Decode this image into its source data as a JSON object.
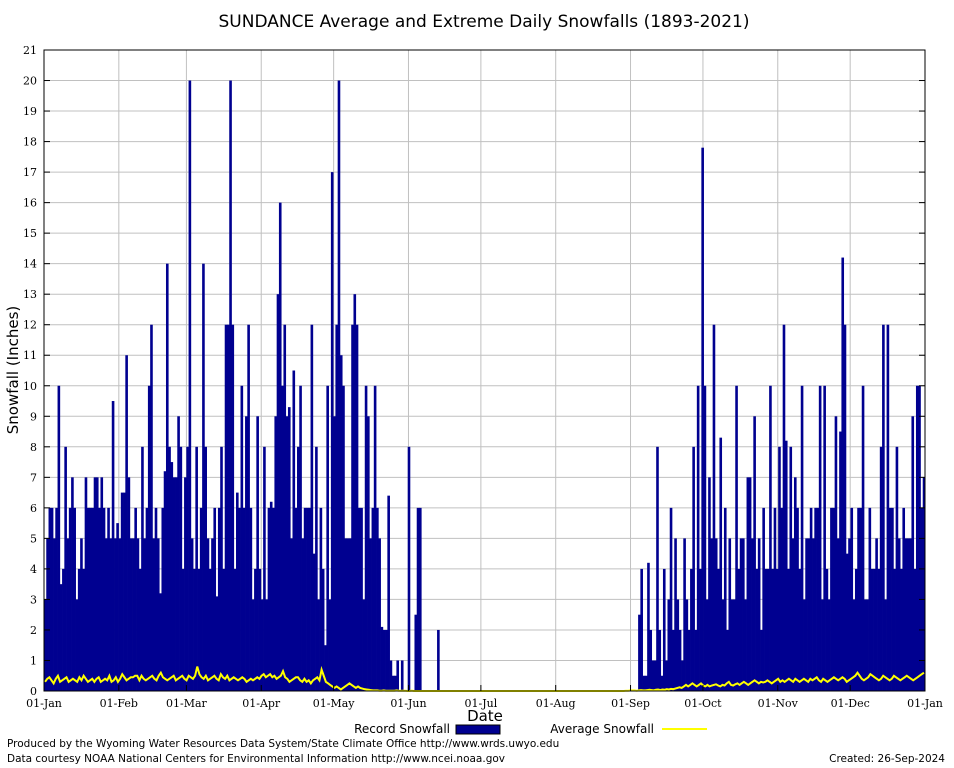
{
  "chart_data": {
    "type": "bar",
    "title": "SUNDANCE Average and Extreme Daily Snowfalls (1893-2021)",
    "xlabel": "Date",
    "ylabel": "Snowfall (Inches)",
    "ylim": [
      0,
      21
    ],
    "yticks": [
      0,
      1,
      2,
      3,
      4,
      5,
      6,
      7,
      8,
      9,
      10,
      11,
      12,
      13,
      14,
      15,
      16,
      17,
      18,
      19,
      20,
      21
    ],
    "xlim": [
      "01-Jan",
      "01-Jan"
    ],
    "xtick_labels": [
      "01-Jan",
      "01-Feb",
      "01-Mar",
      "01-Apr",
      "01-May",
      "01-Jun",
      "01-Jul",
      "01-Aug",
      "01-Sep",
      "01-Oct",
      "01-Nov",
      "01-Dec",
      "01-Jan"
    ],
    "xtick_days": [
      0,
      31,
      59,
      90,
      120,
      151,
      181,
      212,
      243,
      273,
      304,
      334,
      365
    ],
    "grid": true,
    "legend_position": "bottom",
    "series": [
      {
        "name": "Record Snowfall",
        "style": "bar",
        "color": "#000090",
        "values": [
          3,
          5,
          6,
          6,
          5,
          6,
          10,
          3.5,
          4,
          8,
          5,
          6,
          7,
          6,
          3,
          4,
          5,
          4,
          7,
          6,
          6,
          6,
          7,
          7,
          6,
          7,
          6,
          5,
          6,
          5,
          9.5,
          5,
          5.5,
          5,
          6.5,
          6.5,
          11,
          7,
          5,
          5,
          6,
          5,
          4,
          8,
          5,
          6,
          10,
          12,
          5,
          6,
          5,
          3.2,
          6,
          7.2,
          14,
          8,
          7.5,
          7,
          7,
          9,
          8,
          4,
          7,
          8,
          20,
          5,
          4,
          8,
          4,
          6,
          14,
          8,
          5,
          4,
          5,
          6,
          3.1,
          6,
          8,
          4,
          12,
          12,
          20,
          12,
          4,
          6.5,
          6,
          10,
          6,
          9,
          12,
          6,
          3,
          4,
          9,
          4,
          3,
          8,
          3,
          6,
          6.2,
          6,
          9,
          13,
          16,
          10,
          12,
          9,
          9.3,
          5,
          10.5,
          6,
          8,
          10,
          5,
          6,
          6,
          6,
          12,
          4.5,
          8,
          3,
          6,
          4,
          1.5,
          10,
          3,
          17,
          9,
          12,
          20,
          11,
          10,
          5,
          5,
          5,
          12,
          13,
          12,
          6,
          6,
          3,
          10,
          9,
          5,
          6,
          10,
          6,
          5,
          2.1,
          2,
          2,
          6.4,
          1,
          0.5,
          0.5,
          1,
          0,
          1,
          0,
          0,
          8,
          0,
          0,
          2.5,
          6,
          6,
          0,
          0,
          0,
          0,
          0,
          0,
          0,
          2,
          0,
          0,
          0,
          0,
          0,
          0,
          0,
          0,
          0,
          0,
          0,
          0,
          0,
          0,
          0,
          0,
          0,
          0,
          0,
          0,
          0,
          0,
          0,
          0,
          0,
          0,
          0,
          0,
          0,
          0,
          0,
          0,
          0,
          0,
          0,
          0,
          0,
          0,
          0,
          0,
          0,
          0,
          0,
          0,
          0,
          0,
          0,
          0,
          0,
          0,
          0,
          0,
          0,
          0,
          0,
          0,
          0,
          0,
          0,
          0,
          0,
          0,
          0,
          0,
          0,
          0,
          0,
          0,
          0,
          0,
          0,
          0,
          0,
          0,
          0,
          0,
          0,
          0,
          0,
          0,
          0,
          0,
          0,
          0,
          0,
          0,
          0,
          0,
          2.5,
          4,
          0.5,
          0.5,
          4.2,
          2,
          1,
          1,
          8,
          2,
          0.5,
          4,
          1,
          3,
          6,
          2,
          5,
          3,
          2,
          1,
          5,
          3,
          2,
          4,
          8,
          2,
          10,
          4,
          17.8,
          10,
          3,
          7,
          5,
          12,
          5,
          4,
          8.3,
          3,
          6,
          2,
          5,
          3,
          3,
          10,
          4,
          5,
          5,
          3,
          7,
          7,
          5,
          9,
          4,
          5,
          2,
          6,
          4,
          4,
          10,
          4,
          6,
          4,
          8,
          6,
          12,
          8.2,
          4,
          8,
          5,
          7,
          6,
          4,
          10,
          3,
          5,
          5,
          6,
          5,
          6,
          6,
          10,
          3,
          10,
          4,
          3,
          6,
          6,
          9,
          5,
          8.5,
          14.2,
          12,
          4.5,
          5,
          6,
          3,
          4,
          6,
          6,
          10,
          3,
          3,
          6,
          4,
          4,
          5,
          4,
          8,
          12,
          3,
          12,
          6,
          6,
          4,
          8,
          5,
          4,
          6,
          5,
          5,
          5,
          9,
          4,
          10,
          10,
          6,
          7
        ]
      },
      {
        "name": "Average Snowfall",
        "style": "line",
        "color": "#ffff00",
        "values": [
          0.3,
          0.4,
          0.45,
          0.35,
          0.25,
          0.4,
          0.5,
          0.3,
          0.35,
          0.4,
          0.45,
          0.3,
          0.35,
          0.4,
          0.35,
          0.3,
          0.45,
          0.35,
          0.5,
          0.4,
          0.3,
          0.35,
          0.4,
          0.3,
          0.4,
          0.45,
          0.3,
          0.35,
          0.4,
          0.35,
          0.5,
          0.3,
          0.35,
          0.45,
          0.3,
          0.4,
          0.55,
          0.45,
          0.35,
          0.4,
          0.45,
          0.45,
          0.5,
          0.5,
          0.35,
          0.5,
          0.4,
          0.35,
          0.4,
          0.45,
          0.5,
          0.4,
          0.35,
          0.5,
          0.6,
          0.45,
          0.4,
          0.35,
          0.4,
          0.45,
          0.5,
          0.35,
          0.4,
          0.45,
          0.5,
          0.4,
          0.35,
          0.5,
          0.45,
          0.4,
          0.5,
          0.8,
          0.55,
          0.45,
          0.4,
          0.5,
          0.35,
          0.4,
          0.45,
          0.5,
          0.4,
          0.35,
          0.55,
          0.45,
          0.4,
          0.5,
          0.35,
          0.4,
          0.45,
          0.4,
          0.35,
          0.4,
          0.45,
          0.4,
          0.3,
          0.35,
          0.4,
          0.35,
          0.4,
          0.45,
          0.4,
          0.5,
          0.55,
          0.45,
          0.5,
          0.55,
          0.45,
          0.5,
          0.4,
          0.45,
          0.5,
          0.65,
          0.45,
          0.4,
          0.3,
          0.35,
          0.4,
          0.45,
          0.45,
          0.35,
          0.3,
          0.4,
          0.3,
          0.35,
          0.25,
          0.35,
          0.4,
          0.45,
          0.35,
          0.7,
          0.5,
          0.3,
          0.25,
          0.2,
          0.15,
          0.1,
          0.15,
          0.1,
          0.05,
          0.1,
          0.15,
          0.2,
          0.25,
          0.2,
          0.15,
          0.1,
          0.15,
          0.1,
          0.08,
          0.06,
          0.05,
          0.04,
          0.03,
          0.02,
          0.02,
          0.02,
          0.01,
          0.01,
          0.02,
          0.01,
          0.01,
          0.01,
          0.01,
          0.01,
          0.02,
          0.01,
          0.01,
          0.01,
          0.01,
          0,
          0,
          0.01,
          0,
          0,
          0,
          0,
          0,
          0,
          0,
          0,
          0,
          0,
          0,
          0,
          0,
          0,
          0,
          0,
          0,
          0,
          0,
          0,
          0,
          0,
          0,
          0,
          0,
          0,
          0,
          0,
          0,
          0,
          0,
          0,
          0,
          0,
          0,
          0,
          0,
          0,
          0,
          0,
          0,
          0,
          0,
          0,
          0,
          0,
          0,
          0,
          0,
          0,
          0,
          0,
          0,
          0,
          0,
          0,
          0,
          0,
          0,
          0,
          0,
          0,
          0,
          0,
          0,
          0,
          0,
          0,
          0,
          0,
          0,
          0,
          0,
          0,
          0,
          0,
          0,
          0,
          0,
          0,
          0,
          0,
          0,
          0,
          0,
          0,
          0,
          0,
          0,
          0,
          0,
          0,
          0,
          0,
          0,
          0,
          0,
          0,
          0,
          0.01,
          0.01,
          0.02,
          0.02,
          0.02,
          0.01,
          0.02,
          0.03,
          0.02,
          0.02,
          0.03,
          0.04,
          0.03,
          0.02,
          0.04,
          0.05,
          0.03,
          0.05,
          0.04,
          0.06,
          0.05,
          0.07,
          0.06,
          0.08,
          0.1,
          0.12,
          0.1,
          0.15,
          0.2,
          0.15,
          0.2,
          0.25,
          0.2,
          0.15,
          0.2,
          0.25,
          0.18,
          0.15,
          0.2,
          0.15,
          0.18,
          0.2,
          0.22,
          0.18,
          0.15,
          0.2,
          0.18,
          0.25,
          0.3,
          0.2,
          0.18,
          0.22,
          0.25,
          0.2,
          0.25,
          0.3,
          0.25,
          0.2,
          0.25,
          0.3,
          0.35,
          0.3,
          0.25,
          0.3,
          0.28,
          0.3,
          0.35,
          0.3,
          0.25,
          0.3,
          0.35,
          0.4,
          0.3,
          0.35,
          0.3,
          0.35,
          0.4,
          0.35,
          0.3,
          0.4,
          0.35,
          0.3,
          0.35,
          0.4,
          0.35,
          0.3,
          0.4,
          0.35,
          0.4,
          0.45,
          0.35,
          0.3,
          0.4,
          0.35,
          0.3,
          0.35,
          0.4,
          0.45,
          0.4,
          0.35,
          0.4,
          0.45,
          0.4,
          0.3,
          0.35,
          0.4,
          0.45,
          0.5,
          0.6,
          0.5,
          0.4,
          0.35,
          0.4,
          0.45,
          0.55,
          0.5,
          0.45,
          0.4,
          0.35,
          0.4,
          0.5,
          0.45,
          0.4,
          0.35,
          0.4,
          0.5,
          0.45,
          0.4,
          0.35,
          0.4,
          0.45,
          0.5,
          0.45,
          0.4,
          0.35,
          0.4,
          0.45,
          0.5,
          0.55,
          0.6
        ]
      }
    ]
  },
  "footer": {
    "credit_line_1": "Produced by the Wyoming Water Resources Data System/State Climate Office http://www.wrds.uwyo.edu",
    "credit_line_2": "Data courtesy NOAA National Centers for Environmental Information http://www.ncei.noaa.gov",
    "created": "Created:  26-Sep-2024"
  }
}
